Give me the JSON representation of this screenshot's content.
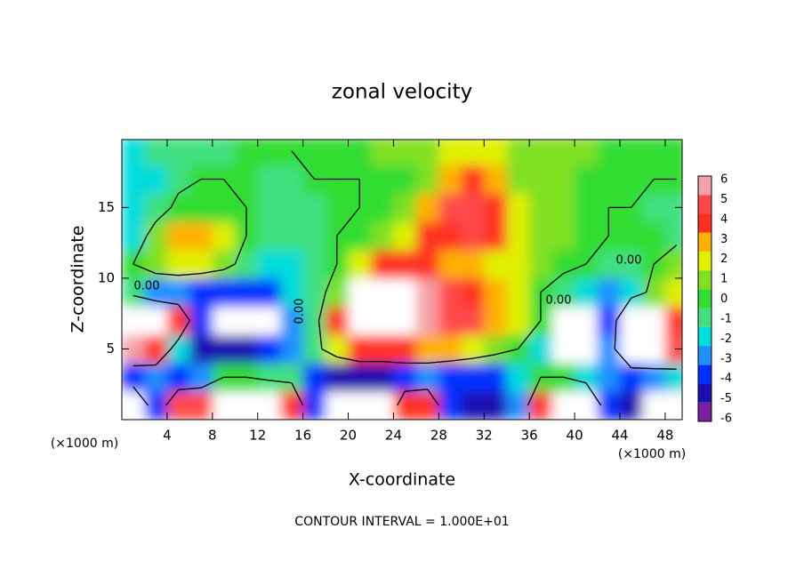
{
  "chart_data": {
    "type": "contour",
    "title": "zonal velocity",
    "xlabel": "X-coordinate",
    "ylabel": "Z-coordinate",
    "x_unit": "(×1000 m)",
    "footnote": "CONTOUR INTERVAL = 1.000E+01",
    "xlim": [
      0,
      49.5
    ],
    "ylim": [
      0,
      19.8
    ],
    "xticks": [
      4,
      8,
      12,
      16,
      20,
      24,
      28,
      32,
      36,
      40,
      44,
      48
    ],
    "yticks": [
      5,
      10,
      15
    ],
    "contour_levels": [
      {
        "value": 0,
        "label": "0.00"
      }
    ],
    "contour_color": "#000000",
    "x": [
      1,
      3,
      5,
      7,
      9,
      11,
      13,
      15,
      17,
      19,
      21,
      23,
      25,
      27,
      29,
      31,
      33,
      35,
      37,
      39,
      41,
      43,
      45,
      47,
      49
    ],
    "y": [
      1,
      3,
      5,
      7,
      9,
      11,
      13,
      15,
      17,
      19
    ],
    "z": [
      [
        8,
        -4,
        5,
        5,
        8,
        8,
        8,
        4,
        -4,
        -8,
        -8,
        -8,
        4,
        4,
        -4,
        -5,
        -5,
        -3,
        4,
        8,
        8,
        -4,
        -5,
        -8,
        -8
      ],
      [
        -4,
        -3,
        -4,
        -3,
        0,
        0,
        -1,
        -1,
        -4,
        -5,
        -5,
        -5,
        -4,
        -3,
        -4,
        -4,
        -4,
        -2,
        0,
        0,
        -2,
        -3,
        -4,
        -3,
        -2
      ],
      [
        6,
        4,
        -2,
        -5,
        -5,
        -5,
        -4,
        -3,
        -1,
        2,
        4,
        4,
        4,
        3,
        3,
        2,
        1,
        0,
        -2,
        -8,
        -8,
        -3,
        8,
        7,
        5
      ],
      [
        8,
        7,
        4,
        -4,
        -8,
        -8,
        -8,
        -3,
        -1,
        4,
        9,
        9,
        9,
        6,
        5,
        5,
        3,
        2,
        0,
        -8,
        -8,
        -4,
        8,
        8,
        4
      ],
      [
        -1,
        -3,
        -3,
        -4,
        -4,
        -4,
        -4,
        -2,
        -1,
        1,
        8,
        8,
        8,
        6,
        5,
        4,
        3,
        2,
        0,
        -1,
        -2,
        -3,
        -2,
        1,
        2
      ],
      [
        0,
        1.5,
        2,
        2,
        1,
        -1,
        -1.5,
        -2,
        -1,
        0,
        2,
        4,
        4,
        4,
        3,
        3,
        2.5,
        2,
        1,
        0.5,
        0,
        -0.5,
        -1,
        0,
        1
      ],
      [
        -1.5,
        1,
        3,
        3,
        2,
        0,
        -1,
        -1,
        -0.5,
        0,
        0.5,
        1,
        2,
        4,
        4,
        5,
        4,
        2,
        1.5,
        1,
        0.5,
        0,
        0,
        0,
        -0.5
      ],
      [
        -2,
        -1,
        0.5,
        0.5,
        0.5,
        0,
        -1,
        -1,
        -0.5,
        0,
        0,
        0.5,
        1,
        3,
        5,
        5,
        4,
        2,
        1.5,
        1,
        0.5,
        0,
        0,
        -0.5,
        -0.5
      ],
      [
        -2,
        -1.5,
        -0.5,
        0,
        0,
        0,
        -0.5,
        -0.5,
        0,
        0,
        0,
        0.5,
        0.5,
        1,
        3,
        4,
        3,
        1.5,
        1,
        1,
        0.5,
        0.5,
        0.5,
        0,
        0
      ],
      [
        -1.5,
        -1,
        -1,
        -0.5,
        -0.5,
        0,
        0,
        0,
        0.5,
        0.5,
        0.5,
        1,
        1,
        1.5,
        2,
        2,
        2,
        1.5,
        1,
        1,
        1,
        0.5,
        0.5,
        0.5,
        0.5
      ]
    ],
    "colorbar": {
      "ticks": [
        -6,
        -5,
        -4,
        -3,
        -2,
        -1,
        0,
        1,
        2,
        3,
        4,
        5,
        6
      ],
      "colors": [
        "#7a1fa0",
        "#1a10b0",
        "#0030ff",
        "#1e90ff",
        "#00dcdc",
        "#40e080",
        "#30dd30",
        "#80e020",
        "#e0f000",
        "#ffb000",
        "#ff3020",
        "#ff4848",
        "#f4a0a8"
      ],
      "out_of_range_color": "#ffffff"
    }
  }
}
